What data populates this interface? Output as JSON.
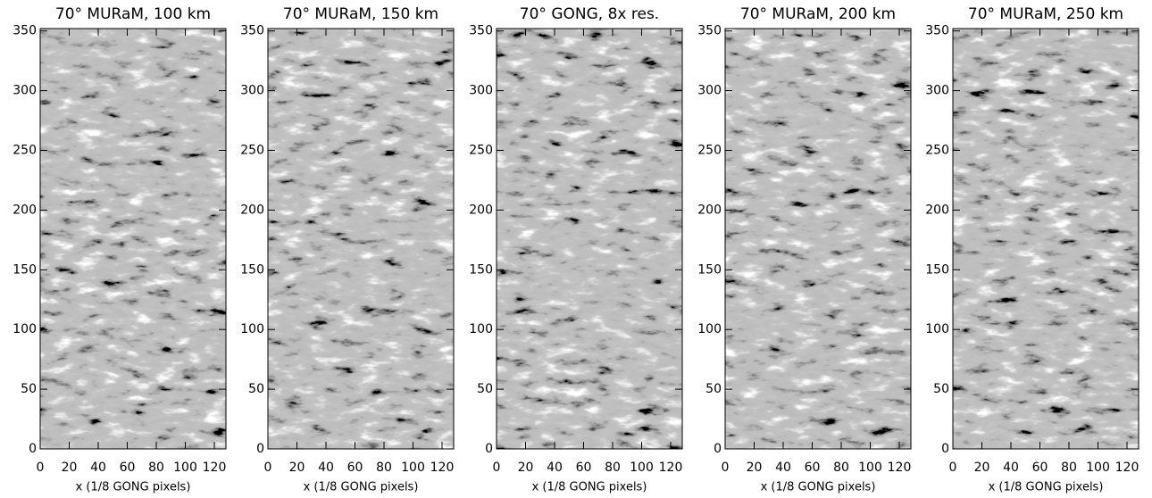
{
  "chart_data": [
    {
      "type": "image",
      "title": "70° MURaM, 100 km",
      "xlabel": "x (1/8 GONG pixels)",
      "xlim": [
        0,
        128
      ],
      "ylim": [
        0,
        352
      ],
      "xticks": [
        0,
        20,
        40,
        60,
        80,
        100,
        120
      ],
      "yticks": [
        0,
        50,
        100,
        150,
        200,
        250,
        300,
        350
      ]
    },
    {
      "type": "image",
      "title": "70° MURaM, 150 km",
      "xlabel": "x (1/8 GONG pixels)",
      "xlim": [
        0,
        128
      ],
      "ylim": [
        0,
        352
      ],
      "xticks": [
        0,
        20,
        40,
        60,
        80,
        100,
        120
      ],
      "yticks": [
        0,
        50,
        100,
        150,
        200,
        250,
        300,
        350
      ]
    },
    {
      "type": "image",
      "title": "70° GONG, 8x res.",
      "xlabel": "x (1/8 GONG pixels)",
      "xlim": [
        0,
        128
      ],
      "ylim": [
        0,
        352
      ],
      "xticks": [
        0,
        20,
        40,
        60,
        80,
        100,
        120
      ],
      "yticks": [
        0,
        50,
        100,
        150,
        200,
        250,
        300,
        350
      ]
    },
    {
      "type": "image",
      "title": "70° MURaM, 200 km",
      "xlabel": "x (1/8 GONG pixels)",
      "xlim": [
        0,
        128
      ],
      "ylim": [
        0,
        352
      ],
      "xticks": [
        0,
        20,
        40,
        60,
        80,
        100,
        120
      ],
      "yticks": [
        0,
        50,
        100,
        150,
        200,
        250,
        300,
        350
      ]
    },
    {
      "type": "image",
      "title": "70° MURaM, 250 km",
      "xlabel": "x (1/8 GONG pixels)",
      "xlim": [
        0,
        128
      ],
      "ylim": [
        0,
        352
      ],
      "xticks": [
        0,
        20,
        40,
        60,
        80,
        100,
        120
      ],
      "yticks": [
        0,
        50,
        100,
        150,
        200,
        250,
        300,
        350
      ]
    }
  ]
}
